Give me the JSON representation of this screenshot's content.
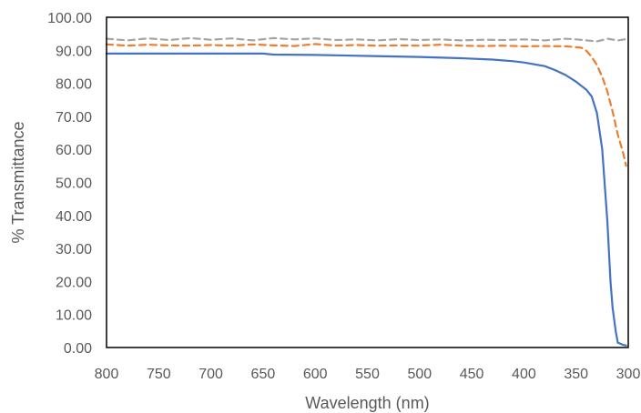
{
  "chart_data": {
    "type": "line",
    "title": "",
    "xlabel": "Wavelength (nm)",
    "ylabel": "% Transmittance",
    "xlim": [
      800,
      300
    ],
    "ylim": [
      0,
      100
    ],
    "x_reversed": true,
    "grid": false,
    "legend": "none",
    "x_ticks": [
      800,
      750,
      700,
      650,
      600,
      550,
      500,
      450,
      400,
      350,
      300
    ],
    "x_tick_labels": [
      "800",
      "750",
      "700",
      "650",
      "600",
      "550",
      "500",
      "450",
      "400",
      "350",
      "300"
    ],
    "y_ticks": [
      0,
      10,
      20,
      30,
      40,
      50,
      60,
      70,
      80,
      90,
      100
    ],
    "y_tick_labels": [
      "0.00",
      "10.00",
      "20.00",
      "30.00",
      "40.00",
      "50.00",
      "60.00",
      "70.00",
      "80.00",
      "90.00",
      "100.00"
    ],
    "series": [
      {
        "color": "#4472C4",
        "dash": "solid",
        "points": [
          [
            800,
            89.0
          ],
          [
            750,
            89.0
          ],
          [
            700,
            89.0
          ],
          [
            650,
            89.0
          ],
          [
            640,
            88.7
          ],
          [
            600,
            88.6
          ],
          [
            550,
            88.3
          ],
          [
            500,
            88.0
          ],
          [
            460,
            87.6
          ],
          [
            430,
            87.2
          ],
          [
            410,
            86.7
          ],
          [
            400,
            86.3
          ],
          [
            380,
            85.2
          ],
          [
            370,
            84.0
          ],
          [
            360,
            82.5
          ],
          [
            350,
            80.5
          ],
          [
            340,
            78.0
          ],
          [
            335,
            76.0
          ],
          [
            330,
            71.0
          ],
          [
            325,
            60.0
          ],
          [
            320,
            38.0
          ],
          [
            317,
            20.0
          ],
          [
            315,
            12.0
          ],
          [
            312,
            5.0
          ],
          [
            310,
            1.5
          ],
          [
            305,
            0.8
          ],
          [
            302,
            0.6
          ]
        ]
      },
      {
        "color": "#ED7D31",
        "dash": "dashed",
        "points": [
          [
            800,
            91.8
          ],
          [
            780,
            91.4
          ],
          [
            760,
            91.7
          ],
          [
            740,
            91.5
          ],
          [
            720,
            91.4
          ],
          [
            700,
            91.6
          ],
          [
            680,
            91.4
          ],
          [
            660,
            91.8
          ],
          [
            640,
            91.5
          ],
          [
            620,
            91.3
          ],
          [
            600,
            91.9
          ],
          [
            580,
            91.4
          ],
          [
            560,
            91.6
          ],
          [
            540,
            91.4
          ],
          [
            520,
            91.5
          ],
          [
            500,
            91.4
          ],
          [
            480,
            91.7
          ],
          [
            460,
            91.4
          ],
          [
            440,
            91.3
          ],
          [
            420,
            91.4
          ],
          [
            400,
            91.2
          ],
          [
            380,
            91.3
          ],
          [
            360,
            91.2
          ],
          [
            345,
            90.8
          ],
          [
            340,
            89.8
          ],
          [
            335,
            88.0
          ],
          [
            330,
            85.5
          ],
          [
            325,
            82.0
          ],
          [
            320,
            77.5
          ],
          [
            315,
            71.5
          ],
          [
            310,
            64.5
          ],
          [
            305,
            59.0
          ],
          [
            302,
            55.0
          ]
        ]
      },
      {
        "color": "#A5A5A5",
        "dash": "dashed",
        "points": [
          [
            800,
            93.5
          ],
          [
            780,
            93.0
          ],
          [
            760,
            93.6
          ],
          [
            740,
            93.1
          ],
          [
            720,
            93.7
          ],
          [
            700,
            93.2
          ],
          [
            680,
            93.6
          ],
          [
            660,
            93.0
          ],
          [
            640,
            93.7
          ],
          [
            620,
            93.3
          ],
          [
            600,
            93.6
          ],
          [
            580,
            93.1
          ],
          [
            560,
            93.3
          ],
          [
            540,
            93.0
          ],
          [
            520,
            93.4
          ],
          [
            500,
            93.1
          ],
          [
            480,
            93.3
          ],
          [
            460,
            93.0
          ],
          [
            440,
            93.2
          ],
          [
            420,
            93.1
          ],
          [
            400,
            93.3
          ],
          [
            380,
            93.0
          ],
          [
            360,
            93.5
          ],
          [
            350,
            93.3
          ],
          [
            340,
            93.0
          ],
          [
            330,
            92.7
          ],
          [
            320,
            93.5
          ],
          [
            310,
            93.0
          ],
          [
            302,
            93.4
          ]
        ]
      }
    ]
  }
}
